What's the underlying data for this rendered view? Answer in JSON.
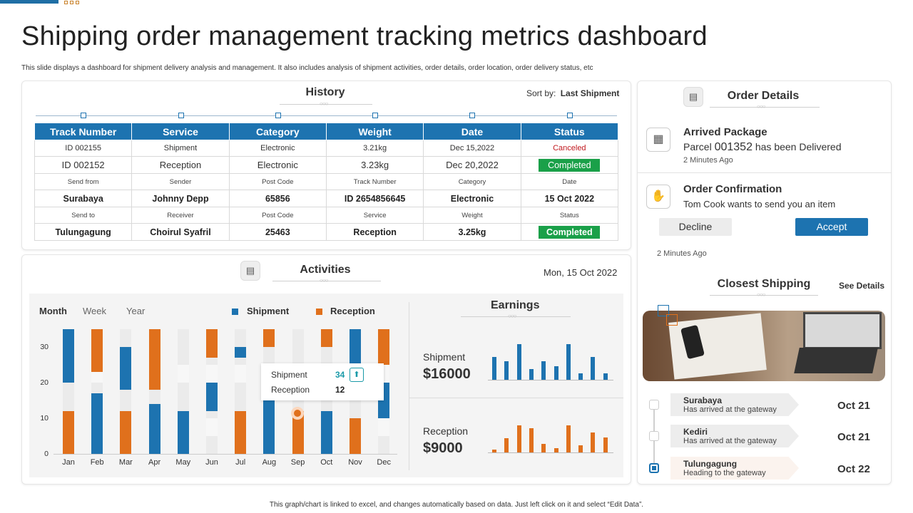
{
  "page": {
    "title": "Shipping order management tracking metrics dashboard",
    "subtitle": "This slide displays a dashboard for shipment delivery analysis and management.  It also includes analysis of shipment activities, order details, order location, order delivery status, etc",
    "footer": "This graph/chart is linked to excel, and changes automatically based on data. Just left click on it and select “Edit Data”."
  },
  "history": {
    "title": "History",
    "sort_label": "Sort by:",
    "sort_value": "Last Shipment",
    "headers": [
      "Track Number",
      "Service",
      "Category",
      "Weight",
      "Date",
      "Status"
    ],
    "row1": [
      "ID 002155",
      "Shipment",
      "Electronic",
      "3.21kg",
      "Dec 15,2022",
      "Canceled"
    ],
    "row2": [
      "ID 002152",
      "Reception",
      "Electronic",
      "3.23kg",
      "Dec 20,2022",
      "Completed"
    ],
    "row3_labels": [
      "Send from",
      "Sender",
      "Post Code",
      "Track Number",
      "Category",
      "Date"
    ],
    "row4": [
      "Surabaya",
      "Johnny  Depp",
      "65856",
      "ID 2654856645",
      "Electronic",
      "15 Oct 2022"
    ],
    "row5_labels": [
      "Send to",
      "Receiver",
      "Post Code",
      "Service",
      "Weight",
      "Status"
    ],
    "row6": [
      "Tulungagung",
      "Choirul  Syafril",
      "25463",
      "Reception",
      "3.25kg",
      "Completed"
    ]
  },
  "activities": {
    "title": "Activities",
    "date": "Mon, 15 Oct 2022",
    "tabs": [
      "Month",
      "Week",
      "Year"
    ],
    "legend": [
      "Shipment",
      "Reception"
    ],
    "tooltip": {
      "shipment_label": "Shipment",
      "shipment_value": "34",
      "reception_label": "Reception",
      "reception_value": "12"
    }
  },
  "chart_data": [
    {
      "type": "bar",
      "categories": [
        "Jan",
        "Feb",
        "Mar",
        "Apr",
        "May",
        "Jun",
        "Jul",
        "Aug",
        "Sep",
        "Oct",
        "Nov",
        "Dec"
      ],
      "yticks": [
        "0",
        "10",
        "20",
        "30"
      ],
      "ylim": [
        0,
        35
      ],
      "series": [
        {
          "name": "Shipment",
          "color": "#1d73b0",
          "ranges": [
            [
              20,
              35
            ],
            [
              0,
              17
            ],
            [
              18,
              30
            ],
            [
              0,
              14
            ],
            [
              0,
              12
            ],
            [
              12,
              20
            ],
            [
              27,
              30
            ],
            [
              0,
              15
            ],
            [],
            [
              0,
              12
            ],
            [
              25,
              35
            ],
            [
              10,
              20
            ]
          ]
        },
        {
          "name": "Reception",
          "color": "#e0701c",
          "ranges": [
            [
              0,
              12
            ],
            [
              23,
              35
            ],
            [
              0,
              12
            ],
            [
              18,
              35
            ],
            [],
            [
              27,
              35
            ],
            [
              0,
              12
            ],
            [
              30,
              35
            ],
            [
              0,
              12
            ],
            [
              30,
              35
            ],
            [
              0,
              10
            ],
            [
              25,
              35
            ]
          ]
        }
      ]
    },
    {
      "type": "bar",
      "title": "Earnings",
      "series": [
        {
          "name": "Shipment",
          "color": "#1d73b0",
          "values": [
            32,
            26,
            50,
            15,
            26,
            19,
            50,
            9,
            32,
            9
          ]
        },
        {
          "name": "Reception",
          "color": "#e0701c",
          "values": [
            4,
            20,
            38,
            34,
            12,
            6,
            38,
            10,
            28,
            21
          ]
        }
      ]
    }
  ],
  "earnings": {
    "title": "Earnings",
    "shipment_label": "Shipment",
    "shipment_value": "$16000",
    "reception_label": "Reception",
    "reception_value": "$9000"
  },
  "order_details": {
    "title": "Order Details",
    "arrived_title": "Arrived Package",
    "arrived_prefix": "Parcel",
    "arrived_number": "001352",
    "arrived_suffix": "has been Delivered",
    "arrived_time": "2 Minutes Ago",
    "confirm_title": "Order Confirmation",
    "confirm_text": "Tom Cook wants to send you an item",
    "decline_label": "Decline",
    "accept_label": "Accept",
    "confirm_time": "2 Minutes Ago"
  },
  "closest_shipping": {
    "title": "Closest Shipping",
    "see_details": "See Details",
    "items": [
      {
        "city": "Surabaya",
        "status": "Has arrived at the gateway",
        "date": "Oct 21"
      },
      {
        "city": "Kediri",
        "status": "Has arrived at the gateway",
        "date": "Oct 21"
      },
      {
        "city": "Tulungagung",
        "status": "Heading to the gateway",
        "date": "Oct 22"
      }
    ]
  },
  "colors": {
    "blue": "#1d73b0",
    "orange": "#e0701c",
    "green": "#1aa049",
    "red": "#c0191f"
  }
}
